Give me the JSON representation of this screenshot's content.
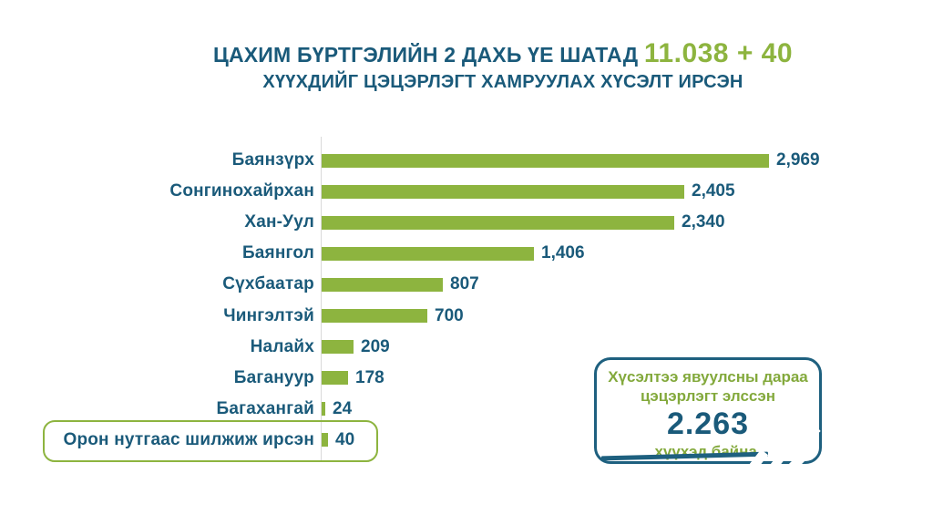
{
  "title": {
    "line1_prefix": "ЦАХИМ БҮРТГЭЛИЙН 2 ДАХЬ ҮЕ ШАТАД ",
    "line1_highlight": "11.038 + 40",
    "line2": "ХҮҮХДИЙГ ЦЭЦЭРЛЭГТ ХАМРУУЛАХ ХҮСЭЛТ ИРСЭН"
  },
  "chart_data": {
    "type": "bar",
    "orientation": "horizontal",
    "title": "ЦАХИМ БҮРТГЭЛИЙН 2 ДАХЬ ҮЕ ШАТАД 11.038 + 40 ХҮҮХДИЙГ ЦЭЦЭРЛЭГТ ХАМРУУЛАХ ХҮСЭЛТ ИРСЭН",
    "categories": [
      "Баянзүрх",
      "Сонгинохайрхан",
      "Хан-Уул",
      "Баянгол",
      "Сүхбаатар",
      "Чингэлтэй",
      "Налайх",
      "Багануур",
      "Багахангай",
      "Орон нутгаас шилжиж ирсэн"
    ],
    "values": [
      2969,
      2405,
      2340,
      1406,
      807,
      700,
      209,
      178,
      24,
      40
    ],
    "value_labels": [
      "2,969",
      "2,405",
      "2,340",
      "1,406",
      "807",
      "700",
      "209",
      "178",
      "24",
      "40"
    ],
    "xlim": [
      0,
      3000
    ],
    "grid": false,
    "legend": false,
    "bar_color": "#8DB43F",
    "highlighted_category_index": 9
  },
  "callout": {
    "line1": "Хүсэлтээ явуулсны дараа",
    "line2": "цэцэрлэгт элссэн",
    "number": "2.263",
    "line3": "хүүхэд байна."
  },
  "colors": {
    "teal_text": "#1A5A7A",
    "green_accent": "#8DB43F",
    "callout_border": "#1E607F",
    "callout_green_text": "#83A93C",
    "axis_line": "#D9D9D9"
  }
}
